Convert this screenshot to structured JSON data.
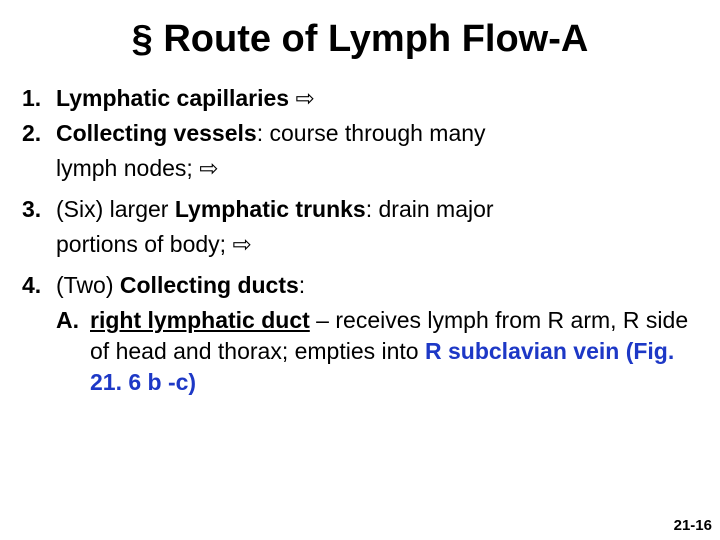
{
  "title": "§ Route of Lymph Flow-A",
  "items": [
    {
      "num": "1.",
      "lead_bold": "Lymphatic capillaries ",
      "tail": "",
      "arrow": "⇨",
      "sub": ""
    },
    {
      "num": "2.",
      "lead_bold": "Collecting vessels",
      "tail": ": course through many",
      "arrow": "",
      "sub": "lymph nodes; ⇨"
    },
    {
      "num": "3.",
      "prefix": "(Six) larger ",
      "lead_bold": "Lymphatic trunks",
      "tail": ": drain major",
      "arrow": "",
      "sub": "portions of body; ⇨"
    },
    {
      "num": "4.",
      "prefix": "(Two) ",
      "lead_bold": "Collecting ducts",
      "tail": ":",
      "arrow": "",
      "sub": ""
    }
  ],
  "item4_sub": {
    "letter": "A.",
    "underline_bold": "right lymphatic duct",
    "after": " – receives lymph from R arm, R side of head and thorax; empties into ",
    "blue_bold": "R subclavian vein (Fig. 21. 6 b -c)"
  },
  "page_number": "21-16",
  "colors": {
    "text": "#000000",
    "blue": "#1d38c6",
    "bg": "#ffffff"
  },
  "font_sizes": {
    "title": 38,
    "body": 23,
    "pagenum": 15
  }
}
